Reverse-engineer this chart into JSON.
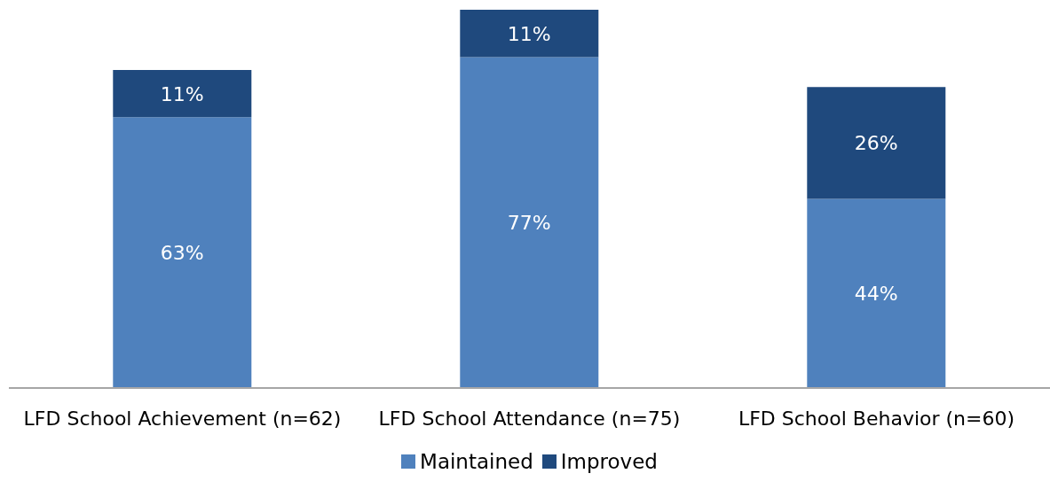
{
  "chart_data": {
    "type": "bar",
    "stacked": true,
    "categories": [
      "LFD School Achievement (n=62)",
      "LFD School Attendance (n=75)",
      "LFD School Behavior (n=60)"
    ],
    "series": [
      {
        "name": "Maintained",
        "color": "#4f81bd",
        "values": [
          63,
          77,
          44
        ],
        "value_labels": [
          "63%",
          "77%",
          "44%"
        ]
      },
      {
        "name": "Improved",
        "color": "#1f497d",
        "values": [
          11,
          11,
          26
        ],
        "value_labels": [
          "11%",
          "11%",
          "26%"
        ]
      }
    ],
    "legend": "bottom",
    "grid": false
  }
}
